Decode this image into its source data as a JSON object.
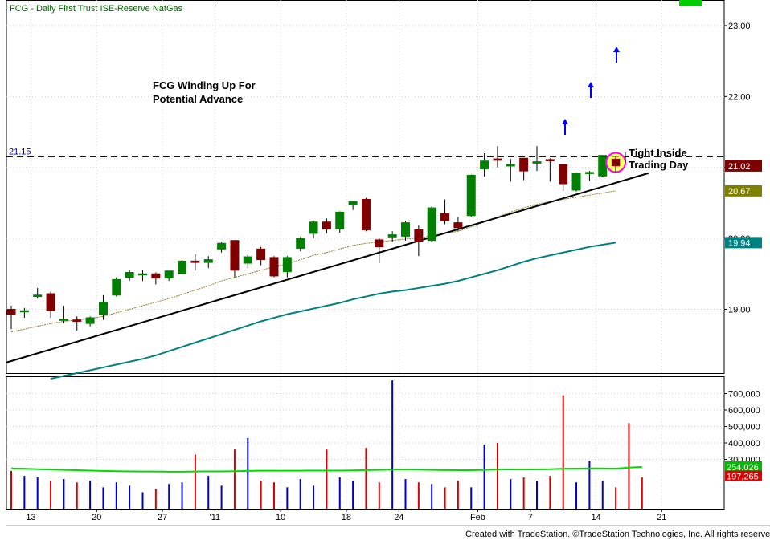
{
  "header": {
    "title": "FCG - Daily  First Trust ISE-Reserve NatGas"
  },
  "footer": {
    "credit": "Created with TradeStation. ©TradeStation Technologies, Inc. All rights reserved."
  },
  "colors": {
    "up_candle": "#008000",
    "down_candle": "#800000",
    "ma_long": "#008080",
    "volume_ma": "#00dd00",
    "volume_up": "#0000cc",
    "volume_down": "#dd0000",
    "resistance": "#0000aa",
    "annotation_arrow": "#0000ff",
    "highlight_circle": "#ff00ff",
    "highlight_fill": "#ffff00"
  },
  "chart_data": [
    {
      "type": "candlestick",
      "y_axis_ticks": [
        "19.00",
        "20.00",
        "21.00",
        "22.00",
        "23.00"
      ],
      "ylim": [
        18.1,
        23.35
      ],
      "x_ticks": [
        "13",
        "20",
        "27",
        "'11",
        "10",
        "18",
        "24",
        "Feb",
        "7",
        "14",
        "21"
      ],
      "candles": [
        {
          "o": 19.0,
          "h": 19.05,
          "l": 18.72,
          "c": 18.93
        },
        {
          "o": 18.97,
          "h": 19.02,
          "l": 18.88,
          "c": 18.98
        },
        {
          "o": 19.18,
          "h": 19.3,
          "l": 19.15,
          "c": 19.2
        },
        {
          "o": 19.22,
          "h": 19.25,
          "l": 18.88,
          "c": 18.98
        },
        {
          "o": 18.86,
          "h": 19.05,
          "l": 18.8,
          "c": 18.86
        },
        {
          "o": 18.85,
          "h": 18.9,
          "l": 18.7,
          "c": 18.83
        },
        {
          "o": 18.8,
          "h": 18.9,
          "l": 18.76,
          "c": 18.88
        },
        {
          "o": 18.93,
          "h": 19.2,
          "l": 18.85,
          "c": 19.1
        },
        {
          "o": 19.2,
          "h": 19.45,
          "l": 19.18,
          "c": 19.42
        },
        {
          "o": 19.45,
          "h": 19.55,
          "l": 19.4,
          "c": 19.52
        },
        {
          "o": 19.5,
          "h": 19.55,
          "l": 19.4,
          "c": 19.5
        },
        {
          "o": 19.5,
          "h": 19.52,
          "l": 19.35,
          "c": 19.44
        },
        {
          "o": 19.44,
          "h": 19.54,
          "l": 19.4,
          "c": 19.54
        },
        {
          "o": 19.5,
          "h": 19.7,
          "l": 19.5,
          "c": 19.68
        },
        {
          "o": 19.68,
          "h": 19.78,
          "l": 19.55,
          "c": 19.66
        },
        {
          "o": 19.66,
          "h": 19.75,
          "l": 19.58,
          "c": 19.7
        },
        {
          "o": 19.85,
          "h": 19.95,
          "l": 19.8,
          "c": 19.93
        },
        {
          "o": 19.97,
          "h": 19.97,
          "l": 19.45,
          "c": 19.55
        },
        {
          "o": 19.65,
          "h": 19.77,
          "l": 19.58,
          "c": 19.74
        },
        {
          "o": 19.85,
          "h": 19.88,
          "l": 19.62,
          "c": 19.7
        },
        {
          "o": 19.73,
          "h": 19.75,
          "l": 19.45,
          "c": 19.47
        },
        {
          "o": 19.53,
          "h": 19.75,
          "l": 19.45,
          "c": 19.73
        },
        {
          "o": 19.86,
          "h": 20.02,
          "l": 19.82,
          "c": 20.0
        },
        {
          "o": 20.07,
          "h": 20.25,
          "l": 20.0,
          "c": 20.23
        },
        {
          "o": 20.23,
          "h": 20.28,
          "l": 20.07,
          "c": 20.13
        },
        {
          "o": 20.13,
          "h": 20.38,
          "l": 20.08,
          "c": 20.37
        },
        {
          "o": 20.47,
          "h": 20.5,
          "l": 20.4,
          "c": 20.52
        },
        {
          "o": 20.55,
          "h": 20.57,
          "l": 20.1,
          "c": 20.12
        },
        {
          "o": 19.98,
          "h": 20.0,
          "l": 19.65,
          "c": 19.88
        },
        {
          "o": 20.02,
          "h": 20.1,
          "l": 19.95,
          "c": 20.05
        },
        {
          "o": 20.03,
          "h": 20.25,
          "l": 19.97,
          "c": 20.22
        },
        {
          "o": 20.12,
          "h": 20.18,
          "l": 19.75,
          "c": 19.95
        },
        {
          "o": 19.97,
          "h": 20.45,
          "l": 19.95,
          "c": 20.43
        },
        {
          "o": 20.35,
          "h": 20.55,
          "l": 20.2,
          "c": 20.25
        },
        {
          "o": 20.22,
          "h": 20.3,
          "l": 20.1,
          "c": 20.15
        },
        {
          "o": 20.32,
          "h": 20.9,
          "l": 20.3,
          "c": 20.89
        },
        {
          "o": 20.98,
          "h": 21.2,
          "l": 20.87,
          "c": 21.09
        },
        {
          "o": 21.12,
          "h": 21.3,
          "l": 21.0,
          "c": 21.1
        },
        {
          "o": 21.02,
          "h": 21.12,
          "l": 20.8,
          "c": 21.04
        },
        {
          "o": 21.13,
          "h": 21.13,
          "l": 20.82,
          "c": 20.95
        },
        {
          "o": 21.06,
          "h": 21.3,
          "l": 20.95,
          "c": 21.08
        },
        {
          "o": 21.11,
          "h": 21.13,
          "l": 20.8,
          "c": 21.1
        },
        {
          "o": 21.04,
          "h": 21.04,
          "l": 20.67,
          "c": 20.77
        },
        {
          "o": 20.68,
          "h": 20.93,
          "l": 20.66,
          "c": 20.92
        },
        {
          "o": 20.92,
          "h": 20.95,
          "l": 20.81,
          "c": 20.93
        },
        {
          "o": 20.88,
          "h": 21.17,
          "l": 20.86,
          "c": 21.17
        },
        {
          "o": 21.12,
          "h": 21.16,
          "l": 20.93,
          "c": 21.02
        }
      ],
      "ma_short": [
        18.68,
        18.72,
        18.76,
        18.8,
        18.83,
        18.85,
        18.87,
        18.9,
        18.95,
        19.0,
        19.05,
        19.1,
        19.15,
        19.21,
        19.27,
        19.33,
        19.4,
        19.45,
        19.5,
        19.55,
        19.6,
        19.64,
        19.7,
        19.76,
        19.8,
        19.85,
        19.9,
        19.93,
        19.95,
        19.97,
        19.99,
        20.0,
        20.04,
        20.07,
        20.1,
        20.16,
        20.23,
        20.3,
        20.37,
        20.43,
        20.48,
        20.52,
        20.55,
        20.58,
        20.61,
        20.64,
        20.67
      ],
      "ma_long": [
        18.02,
        18.06,
        18.1,
        18.14,
        18.18,
        18.22,
        18.26,
        18.3,
        18.35,
        18.41,
        18.47,
        18.53,
        18.59,
        18.65,
        18.71,
        18.77,
        18.83,
        18.88,
        18.93,
        18.97,
        19.01,
        19.05,
        19.09,
        19.14,
        19.18,
        19.22,
        19.25,
        19.27,
        19.3,
        19.33,
        19.36,
        19.4,
        19.45,
        19.5,
        19.55,
        19.61,
        19.67,
        19.72,
        19.76,
        19.8,
        19.84,
        19.88,
        19.91,
        19.94
      ],
      "resistance_level": 21.15,
      "resistance_label": "21.15",
      "price_labels": [
        {
          "text": "21.02",
          "value": 21.02,
          "color": "#800000"
        },
        {
          "text": "20.67",
          "value": 20.67,
          "color": "#808000"
        },
        {
          "text": "19.94",
          "value": 19.94,
          "color": "#008080"
        }
      ],
      "trendline": [
        {
          "i": 0,
          "v": 18.25
        },
        {
          "i": 48.5,
          "v": 20.92
        }
      ],
      "annotations": [
        {
          "text": "FCG Winding Up For",
          "line": 1
        },
        {
          "text": "Potential Advance",
          "line": 2
        },
        {
          "text": "Tight Inside",
          "line": 3
        },
        {
          "text": "Trading Day",
          "line": 4
        }
      ]
    },
    {
      "type": "bar",
      "y_axis_ticks": [
        "300,000",
        "400,000",
        "500,000",
        "600,000",
        "700,000"
      ],
      "ylim": [
        0,
        800000
      ],
      "volumes": [
        230000,
        200000,
        190000,
        170000,
        180000,
        160000,
        170000,
        130000,
        160000,
        140000,
        100000,
        120000,
        150000,
        160000,
        330000,
        200000,
        140000,
        360000,
        430000,
        170000,
        160000,
        130000,
        180000,
        140000,
        360000,
        190000,
        170000,
        370000,
        160000,
        780000,
        180000,
        160000,
        150000,
        130000,
        170000,
        130000,
        390000,
        400000,
        180000,
        190000,
        170000,
        200000,
        690000,
        160000,
        290000,
        170000,
        130000,
        520000,
        190000
      ],
      "volume_ma": [
        245000,
        243000,
        240000,
        238000,
        236000,
        234000,
        232000,
        230000,
        228000,
        227000,
        226000,
        226000,
        225000,
        225000,
        226000,
        227000,
        227000,
        228000,
        230000,
        231000,
        231000,
        231000,
        231000,
        232000,
        232000,
        232000,
        233000,
        235000,
        236000,
        238000,
        238000,
        237000,
        236000,
        235000,
        234000,
        234000,
        236000,
        238000,
        239000,
        239000,
        239000,
        240000,
        243000,
        244000,
        245000,
        245000,
        244000,
        250000,
        254026
      ],
      "labels": [
        {
          "text": "254,026",
          "value": 254026,
          "color": "#00bb00"
        },
        {
          "text": "197,265",
          "value": 197265,
          "color": "#dd0000"
        }
      ]
    }
  ]
}
